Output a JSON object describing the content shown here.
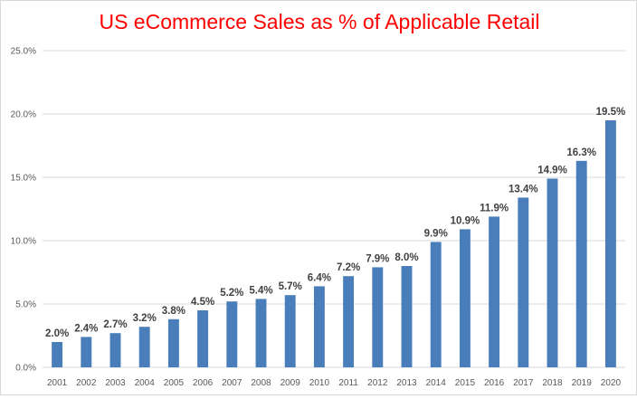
{
  "chart_data": {
    "type": "bar",
    "title": "US eCommerce Sales as % of Applicable Retail",
    "xlabel": "",
    "ylabel": "",
    "categories": [
      "2001",
      "2002",
      "2003",
      "2004",
      "2005",
      "2006",
      "2007",
      "2008",
      "2009",
      "2010",
      "2011",
      "2012",
      "2013",
      "2014",
      "2015",
      "2016",
      "2017",
      "2018",
      "2019",
      "2020"
    ],
    "values": [
      2.0,
      2.4,
      2.7,
      3.2,
      3.8,
      4.5,
      5.2,
      5.4,
      5.7,
      6.4,
      7.2,
      7.9,
      8.0,
      9.9,
      10.9,
      11.9,
      13.4,
      14.9,
      16.3,
      19.5
    ],
    "data_labels": [
      "2.0%",
      "2.4%",
      "2.7%",
      "3.2%",
      "3.8%",
      "4.5%",
      "5.2%",
      "5.4%",
      "5.7%",
      "6.4%",
      "7.2%",
      "7.9%",
      "8.0%",
      "9.9%",
      "10.9%",
      "11.9%",
      "13.4%",
      "14.9%",
      "16.3%",
      "19.5%"
    ],
    "ylim": [
      0,
      25
    ],
    "yticks": [
      0,
      5,
      10,
      15,
      20,
      25
    ],
    "ytick_labels": [
      "0.0%",
      "5.0%",
      "10.0%",
      "15.0%",
      "20.0%",
      "25.0%"
    ],
    "grid": true,
    "legend": "none",
    "colors": {
      "bar": "#4a7ebb",
      "title": "#ff0000",
      "grid": "#d9d9d9"
    }
  }
}
